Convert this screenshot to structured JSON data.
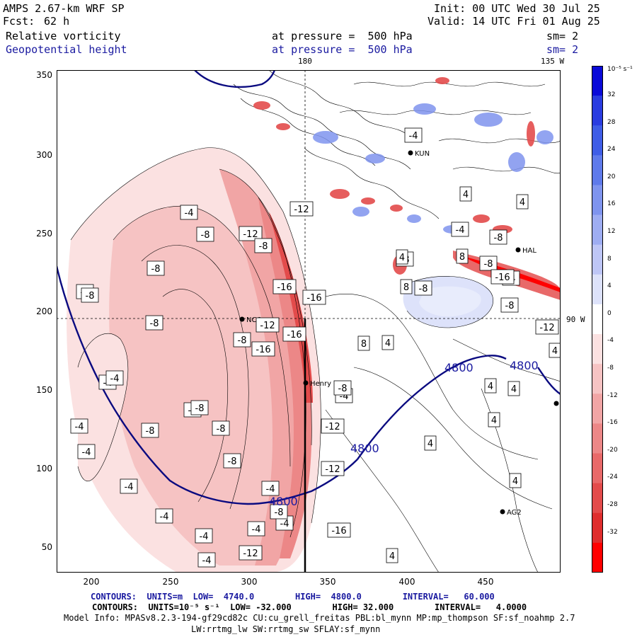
{
  "header": {
    "model": "AMPS 2.67-km WRF SP",
    "fcst_label": "Fcst:",
    "fcst_value": "62 h",
    "init": "Init: 00 UTC Wed 30 Jul 25",
    "valid": "Valid: 14 UTC Fri 01 Aug 25",
    "field1": "Relative vorticity",
    "field2": "Geopotential height",
    "level1": "at pressure =  500 hPa",
    "level2": "at pressure =  500 hPa",
    "sm1": "sm= 2",
    "sm2": "sm= 2",
    "lon_top_180": "180",
    "lon_top_135w": "135 W",
    "lon_right_90w": "90 W"
  },
  "axes": {
    "y_ticks": [
      "350",
      "300",
      "250",
      "200",
      "150",
      "100",
      "50"
    ],
    "x_ticks": [
      "200",
      "250",
      "300",
      "350",
      "400",
      "450"
    ]
  },
  "colorbar": {
    "unit": "10⁻⁵ s⁻¹",
    "labels": [
      "32",
      "28",
      "24",
      "20",
      "16",
      "12",
      "8",
      "4",
      "0",
      "-4",
      "-8",
      "-12",
      "-16",
      "-20",
      "-24",
      "-28",
      "-32"
    ],
    "colors": [
      "#0a0ad8",
      "#2a3ce0",
      "#3f5de6",
      "#5f7aea",
      "#7f94ee",
      "#9eadf2",
      "#bec6f6",
      "#dde2fa",
      "#ffffff",
      "#fbe1e1",
      "#f6c3c3",
      "#f1a5a5",
      "#ec8787",
      "#e86969",
      "#e34b4b",
      "#df2d2d",
      "#ff0000"
    ]
  },
  "stations": [
    {
      "name": "NCO"
    },
    {
      "name": "Henry"
    },
    {
      "name": "HAL"
    },
    {
      "name": "AG2"
    },
    {
      "name": "KUN"
    }
  ],
  "contour_labels": {
    "height": [
      "4800",
      "4800",
      "4800",
      "4800"
    ],
    "vorticity": [
      "-4",
      "-8",
      "-12",
      "-16",
      "4",
      "8",
      "-4",
      "-8",
      "-4",
      "-8",
      "-12",
      "-8",
      "-16",
      "-8",
      "-16",
      "-4",
      "-8",
      "-12",
      "-16",
      "4",
      "8",
      "-8",
      "-4",
      "-4",
      "-8",
      "-4",
      "-4",
      "-8",
      "-4",
      "-4",
      "-4",
      "-4",
      "-8",
      "-8",
      "-4",
      "-8",
      "-12",
      "-12",
      "-4",
      "-8",
      "-4",
      "-4",
      "-12",
      "-16",
      "-8",
      "-4",
      "4",
      "4",
      "4",
      "4",
      "4",
      "4",
      "4",
      "-4",
      "-8",
      "-16",
      "-8",
      "-12",
      "-8",
      "4",
      "4",
      "8",
      "8"
    ]
  },
  "footer": {
    "contours1_label": "CONTOURS:  UNITS=m  LOW=  4740.0        HIGH=  4800.0        INTERVAL=   60.000",
    "contours2_label": "CONTOURS:  UNITS=10⁻⁵ s⁻¹  LOW= -32.000        HIGH= 32.000        INTERVAL=   4.0000",
    "model_info": "Model Info: MPASv8.2.3-194-gf29cd82c CU:cu_grell_freitas PBL:bl_mynn MP:mp_thompson SF:sf_noahmp 2.7",
    "physics": "LW:rrtmg_lw SW:rrtmg_sw SFLAY:sf_mynn"
  }
}
